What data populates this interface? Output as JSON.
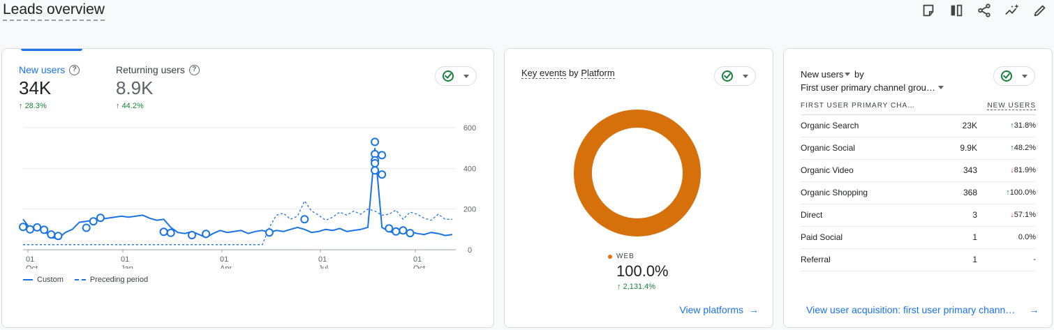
{
  "page": {
    "title": "Leads overview"
  },
  "toolbar": {
    "icons": [
      "note-icon",
      "compare-icon",
      "share-icon",
      "insights-icon",
      "edit-icon"
    ]
  },
  "colors": {
    "accent": "#1a73e8",
    "positive": "#188038",
    "negative": "#d93025",
    "web": "#e8710a",
    "donut": "#d6700b"
  },
  "users_card": {
    "metrics": [
      {
        "label": "New users",
        "value": "34K",
        "change": "28.3%"
      },
      {
        "label": "Returning users",
        "value": "8.9K",
        "change": "44.2%"
      }
    ],
    "legend": {
      "custom": "Custom",
      "preceding": "Preceding period"
    }
  },
  "chart_data": {
    "type": "line",
    "x_ticks": [
      {
        "day": "01",
        "month": "Oct"
      },
      {
        "day": "01",
        "month": "Jan"
      },
      {
        "day": "01",
        "month": "Apr"
      },
      {
        "day": "01",
        "month": "Jul"
      },
      {
        "day": "01",
        "month": "Oct"
      }
    ],
    "y_ticks": [
      "600",
      "400",
      "200",
      "0"
    ],
    "ylim": [
      0,
      600
    ],
    "series": [
      {
        "name": "Custom",
        "style": "solid",
        "values": [
          150,
          105,
          120,
          95,
          60,
          55,
          85,
          100,
          135,
          140,
          145,
          150,
          155,
          160,
          165,
          160,
          165,
          170,
          155,
          145,
          150,
          110,
          85,
          80,
          90,
          75,
          60,
          80,
          95,
          85,
          90,
          95,
          80,
          90,
          95,
          85,
          95,
          90,
          100,
          110,
          100,
          85,
          90,
          100,
          95,
          105,
          90,
          95,
          100,
          110,
          500,
          110,
          90,
          80,
          85,
          90,
          80,
          75,
          85,
          80,
          70,
          75
        ]
      },
      {
        "name": "Preceding period",
        "style": "dashed",
        "values": [
          25,
          25,
          25,
          25,
          25,
          25,
          25,
          25,
          25,
          25,
          25,
          25,
          25,
          25,
          25,
          25,
          25,
          25,
          25,
          25,
          25,
          25,
          25,
          25,
          25,
          25,
          25,
          25,
          25,
          25,
          25,
          25,
          25,
          25,
          25,
          110,
          170,
          180,
          150,
          165,
          240,
          190,
          170,
          145,
          160,
          185,
          170,
          190,
          175,
          200,
          190,
          170,
          175,
          195,
          150,
          185,
          175,
          155,
          145,
          175,
          150,
          150
        ]
      }
    ],
    "markers": [
      [
        0,
        112
      ],
      [
        1,
        100
      ],
      [
        2,
        110
      ],
      [
        3,
        98
      ],
      [
        4,
        75
      ],
      [
        5,
        68
      ],
      [
        9,
        108
      ],
      [
        10,
        140
      ],
      [
        11,
        157
      ],
      [
        20,
        88
      ],
      [
        21,
        83
      ],
      [
        24,
        72
      ],
      [
        26,
        78
      ],
      [
        35,
        85
      ],
      [
        40,
        150
      ],
      [
        50,
        530
      ],
      [
        50,
        470
      ],
      [
        50,
        440
      ],
      [
        50,
        425
      ],
      [
        50,
        390
      ],
      [
        51,
        465
      ],
      [
        51,
        370
      ],
      [
        52,
        105
      ],
      [
        53,
        90
      ],
      [
        54,
        95
      ],
      [
        55,
        82
      ]
    ]
  },
  "platform_card": {
    "heading_metric": "Key events",
    "heading_by": "by",
    "heading_dim": "Platform",
    "legend_label": "WEB",
    "share": "100.0%",
    "change": "2,131.4%",
    "link": "View platforms"
  },
  "channel_card": {
    "heading_metric": "New users",
    "heading_by": "by",
    "heading_dim": "First user primary channel grou…",
    "col_dim": "FIRST USER PRIMARY CHA…",
    "col_metric": "NEW USERS",
    "rows": [
      {
        "name": "Organic Search",
        "value": "23K",
        "change": "31.8%",
        "dir": "up",
        "share": 1.0
      },
      {
        "name": "Organic Social",
        "value": "9.9K",
        "change": "48.2%",
        "dir": "up",
        "share": 0.43
      },
      {
        "name": "Organic Video",
        "value": "343",
        "change": "81.9%",
        "dir": "down",
        "share": 0
      },
      {
        "name": "Organic Shopping",
        "value": "368",
        "change": "100.0%",
        "dir": "up",
        "share": 0
      },
      {
        "name": "Direct",
        "value": "3",
        "change": "57.1%",
        "dir": "down",
        "share": 0
      },
      {
        "name": "Paid Social",
        "value": "1",
        "change": "0.0%",
        "dir": "none",
        "share": 0
      },
      {
        "name": "Referral",
        "value": "1",
        "change": "-",
        "dir": "none",
        "share": 0
      }
    ],
    "link": "View user acquisition: first user primary chann…"
  }
}
